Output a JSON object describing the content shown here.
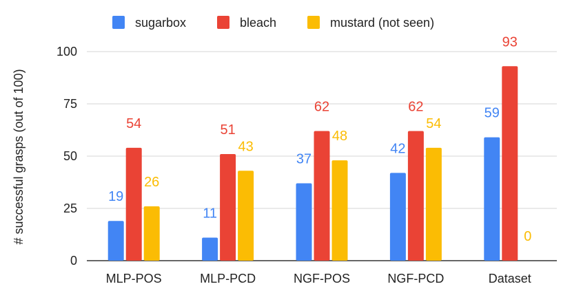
{
  "chart_data": {
    "type": "bar",
    "title": "",
    "xlabel": "",
    "ylabel": "# successful grasps (out of 100)",
    "ylim": [
      0,
      100
    ],
    "yticks": [
      0,
      25,
      50,
      75,
      100
    ],
    "grid": true,
    "legend_position": "top-center",
    "categories": [
      "MLP-POS",
      "MLP-PCD",
      "NGF-POS",
      "NGF-PCD",
      "Dataset"
    ],
    "series": [
      {
        "name": "sugarbox",
        "color": "#4285F4",
        "values": [
          19,
          11,
          37,
          42,
          59
        ]
      },
      {
        "name": "bleach",
        "color": "#EA4335",
        "values": [
          54,
          51,
          62,
          62,
          93
        ]
      },
      {
        "name": "mustard (not seen)",
        "color": "#FBBC04",
        "values": [
          26,
          43,
          48,
          54,
          0
        ]
      }
    ]
  }
}
